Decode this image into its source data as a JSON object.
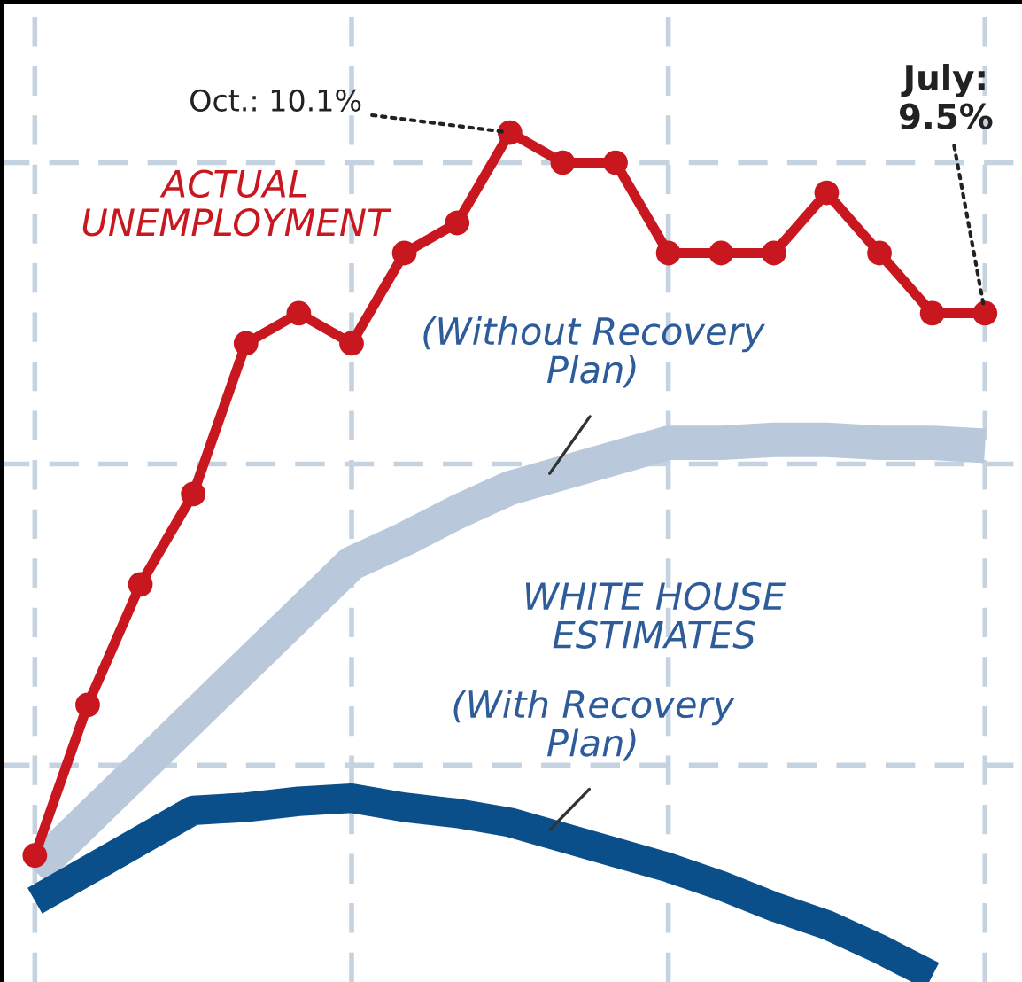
{
  "chart_data": {
    "type": "line",
    "annotations": [
      "WHITE HOUSE ESTIMATES"
    ],
    "categories": [
      null,
      null,
      null,
      null,
      null,
      null,
      null,
      null,
      null,
      null,
      null,
      null,
      null,
      null,
      null,
      null,
      null,
      null,
      null,
      null
    ],
    "ylim": [
      7.28,
      10.54
    ],
    "yticks": [
      {
        "value": 8,
        "label": null
      },
      {
        "value": 9,
        "label": null
      },
      {
        "value": 10,
        "label": null
      }
    ],
    "grid": true,
    "line_style": "solid",
    "series": [
      {
        "name": "ACTUAL UNEMPLOYMENT",
        "color": "#c8171f",
        "marker": "circle",
        "values": [
          null,
          7.7,
          8.2,
          8.6,
          8.9,
          9.4,
          9.5,
          9.4,
          9.7,
          9.8,
          10.1,
          10.0,
          10.0,
          9.7,
          9.7,
          9.7,
          9.9,
          9.7,
          9.5,
          9.5
        ],
        "value_labels": [
          null,
          null,
          null,
          null,
          null,
          null,
          null,
          null,
          null,
          null,
          "Oct.: 10.1%",
          null,
          null,
          null,
          null,
          null,
          null,
          null,
          null,
          "July: 9.5%"
        ]
      },
      {
        "name": "(Without Recovery Plan)",
        "color": "#b9c9db",
        "marker": "none",
        "values": [
          null,
          7.65,
          7.82,
          7.99,
          8.16,
          8.33,
          8.5,
          8.67,
          8.75,
          8.84,
          8.92,
          8.97,
          9.02,
          9.07,
          9.07,
          9.08,
          9.08,
          9.07,
          9.07,
          9.06
        ]
      },
      {
        "name": "(With Recovery Plan)",
        "color": "#0b4f8a",
        "marker": "none",
        "values": [
          null,
          7.55,
          7.65,
          7.75,
          7.85,
          7.86,
          7.88,
          7.89,
          7.86,
          7.84,
          7.81,
          7.76,
          7.71,
          7.66,
          7.6,
          7.53,
          7.47,
          7.39,
          7.3,
          null
        ]
      }
    ]
  }
}
